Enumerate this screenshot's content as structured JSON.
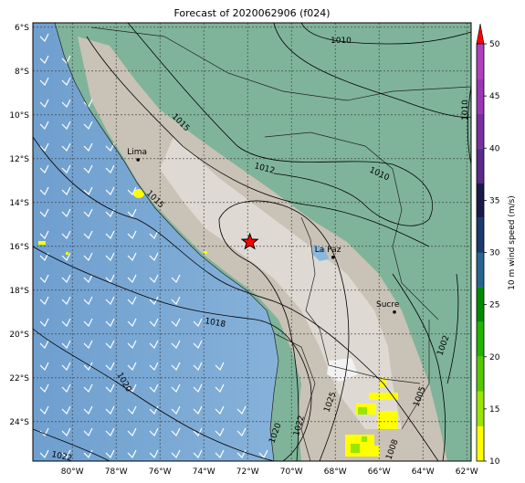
{
  "title": "Forecast of 2020062906 (f024)",
  "map": {
    "lon_ticks": [
      "80°W",
      "78°W",
      "76°W",
      "74°W",
      "72°W",
      "70°W",
      "68°W",
      "66°W",
      "64°W",
      "62°W"
    ],
    "lat_ticks": [
      "6°S",
      "8°S",
      "10°S",
      "12°S",
      "14°S",
      "16°S",
      "18°S",
      "20°S",
      "22°S",
      "24°S"
    ],
    "cities": [
      {
        "name": "Lima",
        "lon": -77.0,
        "lat": -12.05
      },
      {
        "name": "La Paz",
        "lon": -68.1,
        "lat": -16.5
      },
      {
        "name": "Sucre",
        "lon": -65.3,
        "lat": -19.0
      }
    ],
    "marker": {
      "name": "star",
      "lon": -71.9,
      "lat": -15.8,
      "color": "#ff0000"
    },
    "contour_labels": [
      "1010",
      "1010",
      "1010",
      "1012",
      "1015",
      "1015",
      "1018",
      "1020",
      "1020",
      "1022",
      "1022",
      "1025",
      "1005",
      "1002",
      "1008"
    ]
  },
  "colorbar": {
    "label": "10 m wind speed (m/s)",
    "ticks": [
      "10",
      "15",
      "20",
      "25",
      "30",
      "35",
      "40",
      "45",
      "50"
    ],
    "colors": [
      "#ffff00",
      "#99e600",
      "#55c800",
      "#20b400",
      "#008a00",
      "#27648f",
      "#1b3a6b",
      "#1a1a4a",
      "#5a2a8a",
      "#7a2fa0",
      "#9a35b5",
      "#b040c0"
    ],
    "extend_color": "#ff0000"
  }
}
